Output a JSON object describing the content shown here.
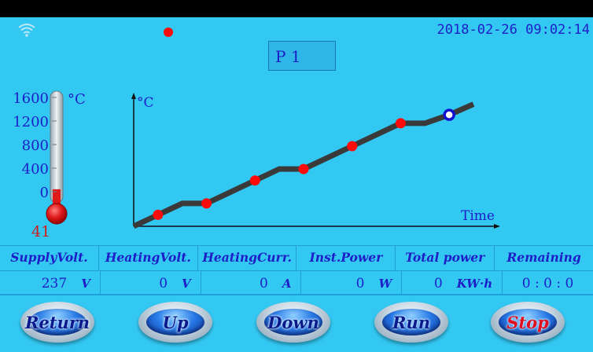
{
  "status": {
    "wifi_icon": "wifi-icon",
    "record_color": "#FF0A0A",
    "datetime": "2018-02-26 09:02:14"
  },
  "program": {
    "label": "P 1"
  },
  "thermometer": {
    "unit": "°C",
    "scale": [
      "1600",
      "1200",
      "800",
      "400",
      "0"
    ],
    "current": "41",
    "fill_color": "#E01A1A",
    "level_fraction": 0.026
  },
  "chart_data": {
    "type": "line",
    "ylabel": "°C",
    "xlabel": "Time",
    "series": [
      {
        "values": [
          0,
          15,
          30,
          30,
          45,
          60,
          75,
          75,
          90,
          105,
          120,
          135,
          135,
          146,
          160
        ]
      }
    ],
    "markers": [
      {
        "index": 1,
        "state": "done"
      },
      {
        "index": 3,
        "state": "done"
      },
      {
        "index": 5,
        "state": "done"
      },
      {
        "index": 7,
        "state": "done"
      },
      {
        "index": 9,
        "state": "done"
      },
      {
        "index": 11,
        "state": "done"
      },
      {
        "index": 13,
        "state": "current"
      }
    ],
    "grid": false
  },
  "table": {
    "headers": [
      "SupplyVolt.",
      "HeatingVolt.",
      "HeatingCurr.",
      "Inst.Power",
      "Total power",
      "Remaining"
    ],
    "values": [
      {
        "num": "237",
        "unit": "V"
      },
      {
        "num": "0",
        "unit": "V"
      },
      {
        "num": "0",
        "unit": "A"
      },
      {
        "num": "0",
        "unit": "W"
      },
      {
        "num": "0",
        "unit": "KW·h"
      },
      {
        "num": "0 : 0 : 0",
        "unit": ""
      }
    ]
  },
  "buttons": {
    "return": "Return",
    "up": "Up",
    "down": "Down",
    "run": "Run",
    "stop": "Stop"
  }
}
